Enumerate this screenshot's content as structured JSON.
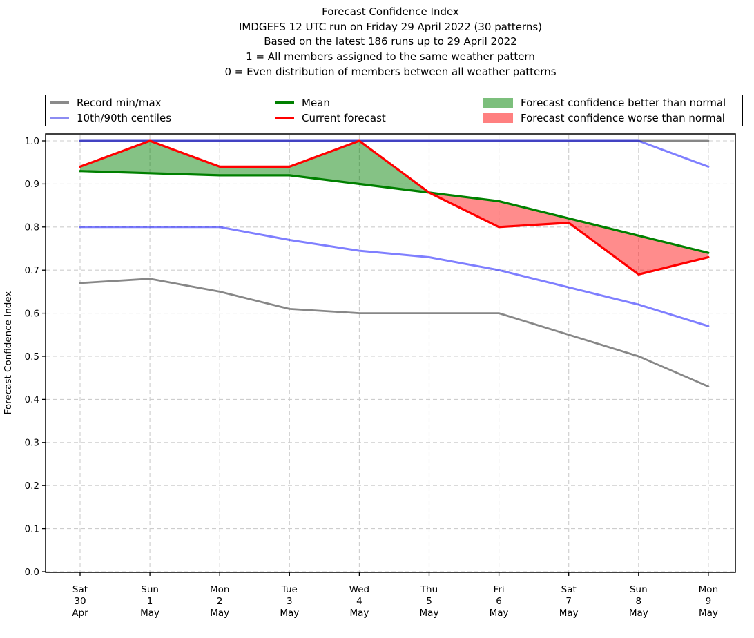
{
  "title": {
    "lines": [
      "Forecast Confidence Index",
      "IMDGEFS 12 UTC run on Friday 29 April 2022 (30 patterns)",
      "Based on the latest 186 runs up to 29 April 2022",
      "1 = All members assigned to the same weather pattern",
      "0 = Even distribution of members between all weather patterns"
    ]
  },
  "legend": {
    "items": [
      {
        "label": "Record min/max",
        "sample": "line",
        "color": "#8a8a8a"
      },
      {
        "label": "10th/90th centiles",
        "sample": "line",
        "color": "#8c8cf2"
      },
      {
        "label": "Mean",
        "sample": "line",
        "color": "#008000"
      },
      {
        "label": "Current forecast",
        "sample": "line",
        "color": "#ff0000"
      },
      {
        "label": "Forecast confidence better than normal",
        "sample": "patch",
        "color": "#7cbf7c"
      },
      {
        "label": "Forecast confidence worse than normal",
        "sample": "patch",
        "color": "#ff8080"
      }
    ]
  },
  "chart_data": {
    "type": "line",
    "title": "Forecast Confidence Index",
    "xlabel": "",
    "ylabel": "Forecast Confidence Index",
    "ylim": [
      0.0,
      1.0
    ],
    "yticks": [
      "0.0",
      "0.1",
      "0.2",
      "0.3",
      "0.4",
      "0.5",
      "0.6",
      "0.7",
      "0.8",
      "0.9",
      "1.0"
    ],
    "grid": true,
    "grid_color": "#cdcdcd",
    "legend_position": "top",
    "categories": [
      [
        "Sat",
        "30",
        "Apr"
      ],
      [
        "Sun",
        "1",
        "May"
      ],
      [
        "Mon",
        "2",
        "May"
      ],
      [
        "Tue",
        "3",
        "May"
      ],
      [
        "Wed",
        "4",
        "May"
      ],
      [
        "Thu",
        "5",
        "May"
      ],
      [
        "Fri",
        "6",
        "May"
      ],
      [
        "Sat",
        "7",
        "May"
      ],
      [
        "Sun",
        "8",
        "May"
      ],
      [
        "Mon",
        "9",
        "May"
      ]
    ],
    "series": [
      {
        "key": "record_max",
        "name": "Record max",
        "color": "#878787",
        "opacity": 1,
        "width": 2.8,
        "values": [
          1.0,
          1.0,
          1.0,
          1.0,
          1.0,
          1.0,
          1.0,
          1.0,
          1.0,
          1.0
        ]
      },
      {
        "key": "record_min",
        "name": "Record min",
        "color": "#878787",
        "opacity": 1,
        "width": 2.8,
        "values": [
          0.67,
          0.68,
          0.65,
          0.61,
          0.6,
          0.6,
          0.6,
          0.55,
          0.5,
          0.43
        ]
      },
      {
        "key": "centile_90",
        "name": "90th centile",
        "color": "#0000ff",
        "opacity": 0.5,
        "width": 3.0,
        "values": [
          1.0,
          1.0,
          1.0,
          1.0,
          1.0,
          1.0,
          1.0,
          1.0,
          1.0,
          0.94
        ]
      },
      {
        "key": "centile_10",
        "name": "10th centile",
        "color": "#0000ff",
        "opacity": 0.5,
        "width": 3.0,
        "values": [
          0.8,
          0.8,
          0.8,
          0.77,
          0.745,
          0.73,
          0.7,
          0.66,
          0.62,
          0.57
        ]
      },
      {
        "key": "mean",
        "name": "Mean",
        "color": "#008000",
        "opacity": 1,
        "width": 3.2,
        "values": [
          0.93,
          0.925,
          0.92,
          0.92,
          0.9,
          0.88,
          0.86,
          0.82,
          0.78,
          0.74
        ]
      },
      {
        "key": "forecast",
        "name": "Current forecast",
        "color": "#ff0000",
        "opacity": 1,
        "width": 3.2,
        "values": [
          0.94,
          1.0,
          0.94,
          0.94,
          1.0,
          0.88,
          0.8,
          0.81,
          0.69,
          0.73
        ]
      }
    ],
    "fills": [
      {
        "name": "better_than_normal",
        "between": [
          "forecast",
          "mean"
        ],
        "when": "forecast_above",
        "color": "#008000",
        "opacity": 0.48
      },
      {
        "name": "worse_than_normal",
        "between": [
          "forecast",
          "mean"
        ],
        "when": "forecast_below",
        "color": "#ff0000",
        "opacity": 0.45
      }
    ]
  }
}
